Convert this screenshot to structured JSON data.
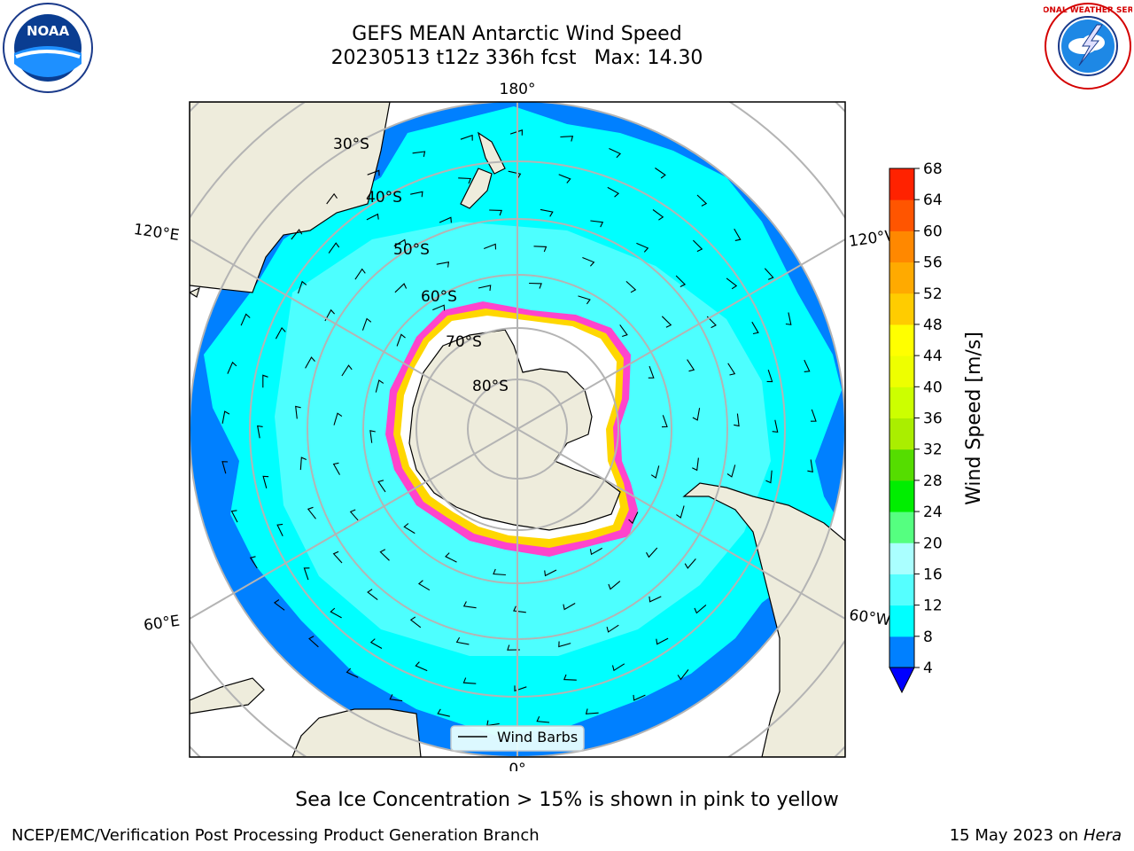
{
  "header": {
    "title": "GEFS MEAN Antarctic Wind Speed",
    "run": "20230513 t12z 336h fcst",
    "max_label": "Max: 14.30"
  },
  "logos": {
    "left": "NOAA",
    "right": "NATIONAL WEATHER SERVICE"
  },
  "map": {
    "projection": "south-polar-stereographic",
    "longitude_labels": {
      "top": "180°",
      "bottom": "0°",
      "upper_left": "120°E",
      "upper_right": "120°W",
      "lower_left": "60°E",
      "lower_right": "60°W"
    },
    "latitude_labels": [
      "30°S",
      "40°S",
      "50°S",
      "60°S",
      "70°S",
      "80°S"
    ],
    "legend_label": "Wind Barbs",
    "colors": {
      "ocean_base": "#00ffff",
      "ocean_strong": "#0080ff",
      "ocean_light": "#55ffff",
      "land": "#eeecdc",
      "ice_edge": "#ff44cc",
      "ice_inner": "#ffd700",
      "grid": "#b4b4b4"
    }
  },
  "chart_data": {
    "type": "heatmap",
    "colorbar": {
      "label": "Wind Speed [m/s]",
      "ticks": [
        4,
        8,
        12,
        16,
        20,
        24,
        28,
        32,
        36,
        40,
        44,
        48,
        52,
        56,
        60,
        64,
        68
      ],
      "colors": [
        "#0080ff",
        "#00ffff",
        "#55ffff",
        "#aaffff",
        "#55ff80",
        "#00ee00",
        "#55dd00",
        "#aaee00",
        "#ccff00",
        "#eeff00",
        "#ffff00",
        "#ffcc00",
        "#ffaa00",
        "#ff8800",
        "#ff5500",
        "#ff2200"
      ],
      "extend": "min",
      "extend_color": "#0000ff"
    },
    "max_value": 14.3,
    "units": "m/s"
  },
  "footer": {
    "note": "Sea Ice Concentration > 15% is shown in pink to yellow",
    "left": "NCEP/EMC/Verification Post Processing Product Generation Branch",
    "date": "15 May 2023 on",
    "machine": "Hera"
  }
}
